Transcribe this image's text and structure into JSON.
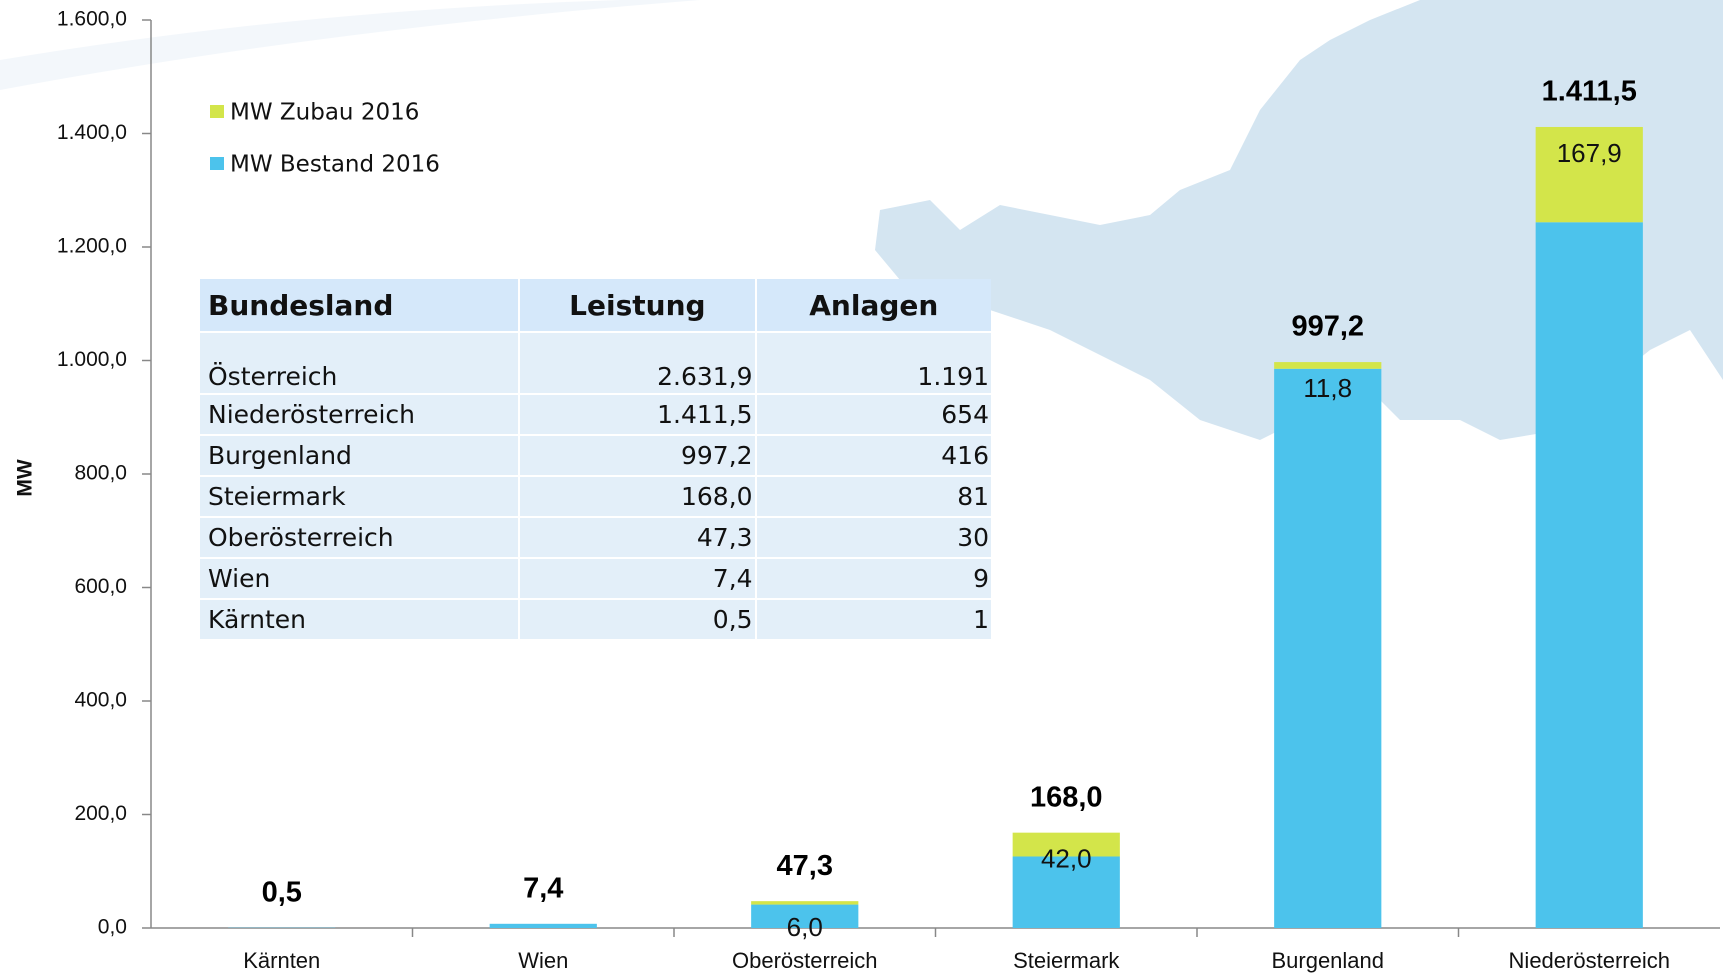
{
  "chart_data": {
    "type": "stacked_bar",
    "ylabel": "MW",
    "categories": [
      "Kärnten",
      "Wien",
      "Oberösterreich",
      "Steiermark",
      "Burgenland",
      "Niederösterreich"
    ],
    "series": [
      {
        "name": "MW Bestand 2016",
        "color": "#4cc3ec",
        "values": [
          0.5,
          7.4,
          41.3,
          126.0,
          985.4,
          1243.6
        ]
      },
      {
        "name": "MW Zubau 2016",
        "color": "#d3e54a",
        "values": [
          0,
          0,
          6.0,
          42.0,
          11.8,
          167.9
        ],
        "value_labels": [
          null,
          null,
          "6,0",
          "42,0",
          "11,8",
          "167,9"
        ]
      }
    ],
    "totals": [
      0.5,
      7.4,
      47.3,
      168.0,
      997.2,
      1411.5
    ],
    "total_labels": [
      "0,5",
      "7,4",
      "47,3",
      "168,0",
      "997,2",
      "1.411,5"
    ],
    "ylim": [
      0,
      1600
    ],
    "yticks": [
      {
        "value": 0,
        "label": "0,0"
      },
      {
        "value": 200,
        "label": "200,0"
      },
      {
        "value": 400,
        "label": "400,0"
      },
      {
        "value": 600,
        "label": "600,0"
      },
      {
        "value": 800,
        "label": "800,0"
      },
      {
        "value": 1000,
        "label": "1.000,0"
      },
      {
        "value": 1200,
        "label": "1.200,0"
      },
      {
        "value": 1400,
        "label": "1.400,0"
      },
      {
        "value": 1600,
        "label": "1.600,0"
      }
    ],
    "grid": false
  },
  "table": {
    "header": [
      "Bundesland",
      "Leistung",
      "Anlagen"
    ],
    "rows": [
      [
        "Österreich",
        "2.631,9",
        "1.191"
      ],
      [
        "Niederösterreich",
        "1.411,5",
        "654"
      ],
      [
        "Burgenland",
        "997,2",
        "416"
      ],
      [
        "Steiermark",
        "168,0",
        "81"
      ],
      [
        "Oberösterreich",
        "47,3",
        "30"
      ],
      [
        "Wien",
        "7,4",
        "9"
      ],
      [
        "Kärnten",
        "0,5",
        "1"
      ]
    ]
  }
}
